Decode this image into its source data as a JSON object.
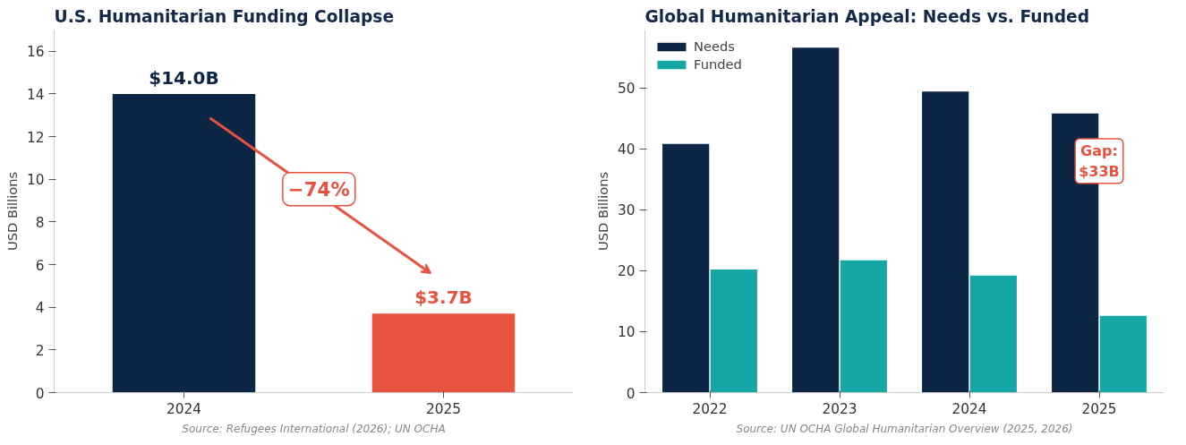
{
  "chart_data": [
    {
      "type": "bar",
      "title": "U.S. Humanitarian Funding Collapse",
      "ylabel": "USD Billions",
      "categories": [
        "2024",
        "2025"
      ],
      "values": [
        14.0,
        3.7
      ],
      "colors": [
        "#0d2646",
        "#e8533f"
      ],
      "value_labels": [
        "$14.0B",
        "$3.7B"
      ],
      "ylim": [
        0,
        17
      ],
      "yticks": [
        0,
        2,
        4,
        6,
        8,
        10,
        12,
        14,
        16
      ],
      "grid": false,
      "annotations": [
        "−74%",
        "Source: Refugees International (2026); UN OCHA"
      ]
    },
    {
      "type": "bar",
      "title": "Global Humanitarian Appeal: Needs vs. Funded",
      "ylabel": "USD Billions",
      "categories": [
        "2022",
        "2023",
        "2024",
        "2025"
      ],
      "series": [
        {
          "name": "Needs",
          "color": "#0d2646",
          "values": [
            40.8,
            56.6,
            49.4,
            45.8
          ]
        },
        {
          "name": "Funded",
          "color": "#15a6a6",
          "values": [
            20.2,
            21.7,
            19.2,
            12.6
          ]
        }
      ],
      "ylim": [
        0,
        59.5
      ],
      "yticks": [
        0,
        10,
        20,
        30,
        40,
        50
      ],
      "grid": false,
      "legend": "top left",
      "annotations": [
        {
          "text": "Gap:\n$33B",
          "x": "2025",
          "y": 38
        },
        "Source: UN OCHA Global Humanitarian Overview (2025, 2026)"
      ]
    }
  ]
}
